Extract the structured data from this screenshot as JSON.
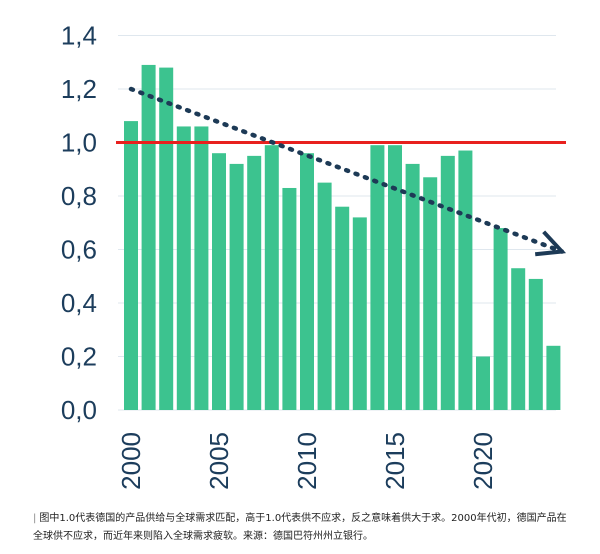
{
  "chart_data": {
    "type": "bar",
    "title": "",
    "xlabel": "",
    "ylabel": "",
    "x": [
      2000,
      2001,
      2002,
      2003,
      2004,
      2005,
      2006,
      2007,
      2008,
      2009,
      2010,
      2011,
      2012,
      2013,
      2014,
      2015,
      2016,
      2017,
      2018,
      2019,
      2020,
      2021,
      2022,
      2023,
      2024
    ],
    "values": [
      1.08,
      1.29,
      1.28,
      1.06,
      1.06,
      0.96,
      0.92,
      0.95,
      0.99,
      0.83,
      0.96,
      0.85,
      0.76,
      0.72,
      0.99,
      0.99,
      0.92,
      0.87,
      0.95,
      0.97,
      0.2,
      0.68,
      0.53,
      0.49,
      0.24
    ],
    "ylim": [
      0,
      1.4
    ],
    "yticks": [
      "0,0",
      "0,2",
      "0,4",
      "0,6",
      "0,8",
      "1,0",
      "1,2",
      "1,4"
    ],
    "xticks": [
      "2000",
      "2005",
      "2010",
      "2015",
      "2020"
    ],
    "reference_line": {
      "y": 1.0,
      "color": "#e8201e"
    },
    "trend_line": {
      "from": [
        2000,
        1.2
      ],
      "to": [
        2023.8,
        0.57
      ],
      "color": "#1d3a56",
      "style": "dotted-arrow"
    },
    "bar_color": "#3cc38f",
    "grid": "horizontal"
  },
  "caption": "图中1.0代表德国的产品供给与全球需求匹配，高于1.0代表供不应求，反之意味着供大于求。2000年代初，德国产品在全球供不应求，而近年来则陷入全球需求疲软。来源：德国巴符州州立银行。"
}
